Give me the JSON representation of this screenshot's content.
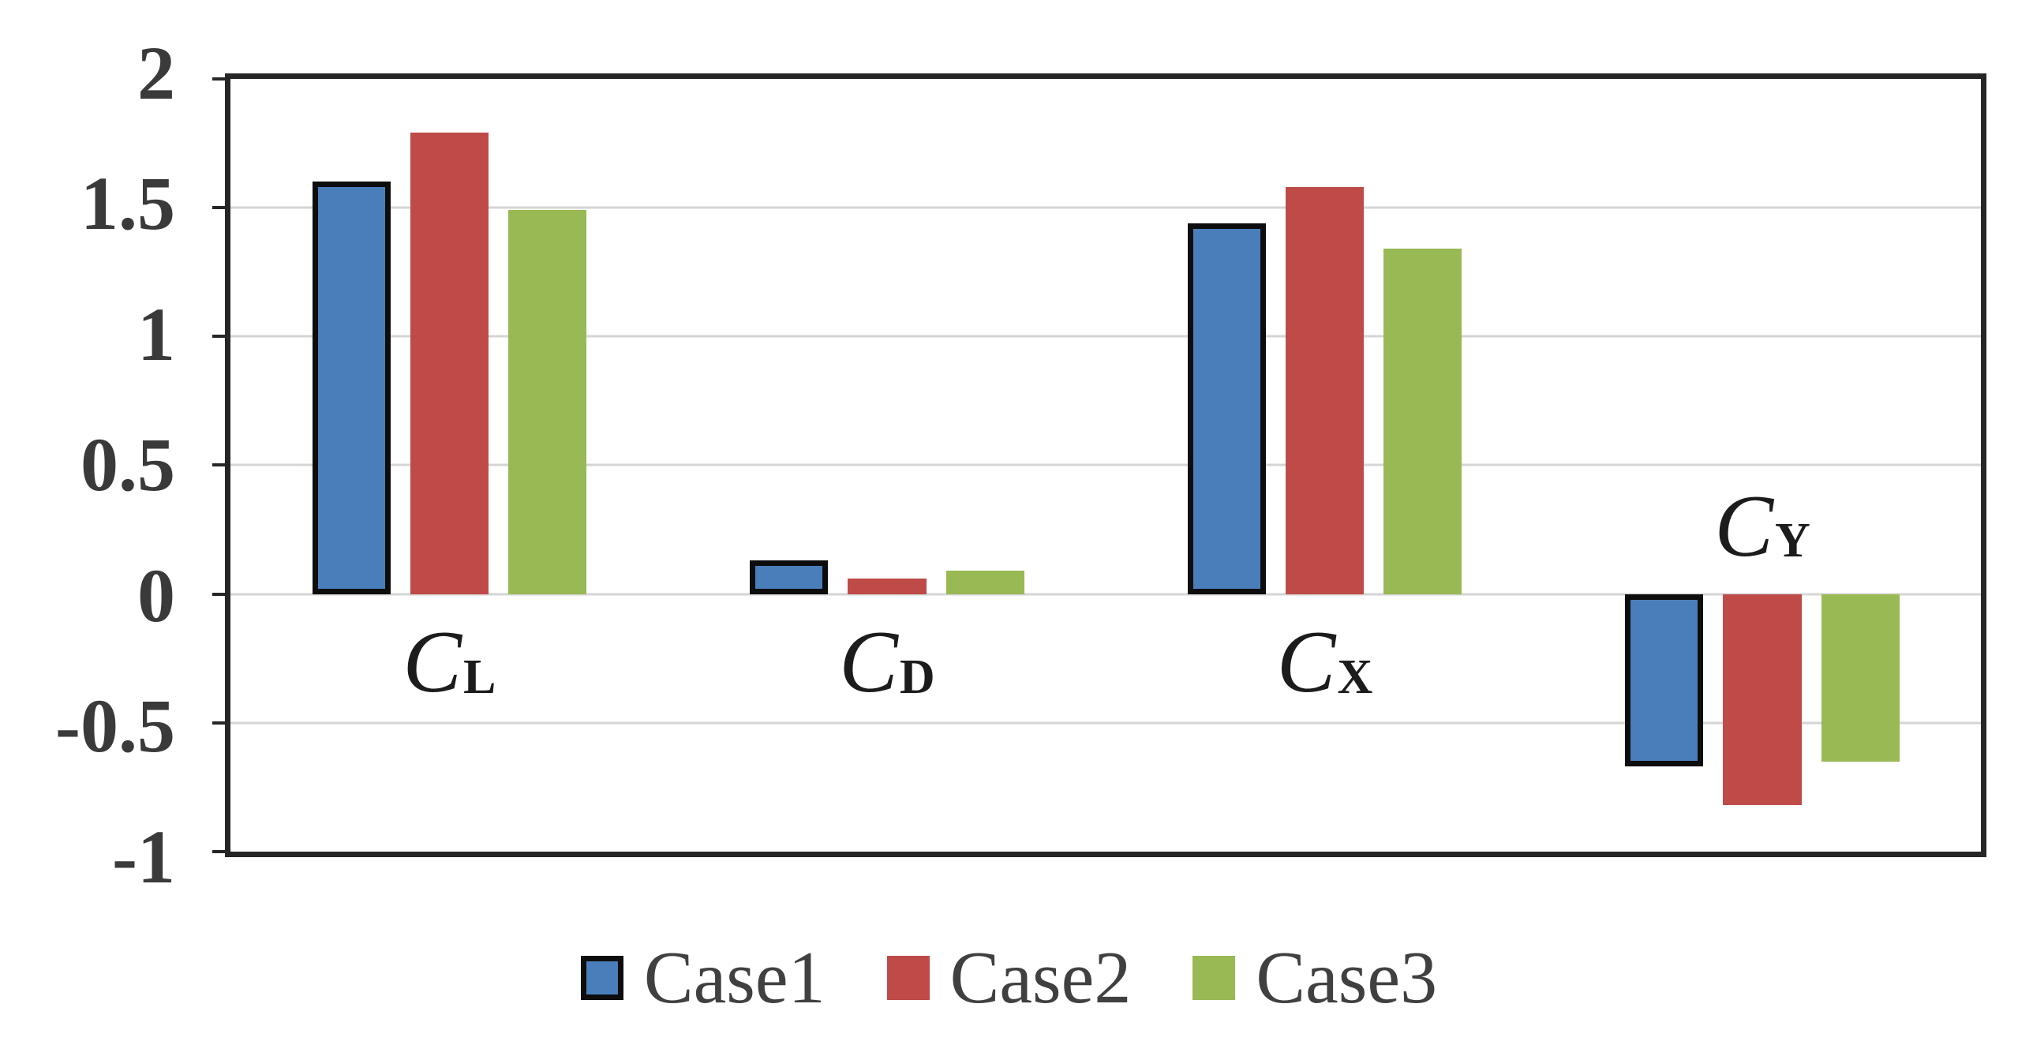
{
  "chart_data": {
    "type": "bar",
    "title": "",
    "xlabel": "",
    "ylabel": "",
    "categories": [
      {
        "text": "C",
        "sub": "L",
        "label_position": "below"
      },
      {
        "text": "C",
        "sub": "D",
        "label_position": "below"
      },
      {
        "text": "C",
        "sub": "X",
        "label_position": "below"
      },
      {
        "text": "C",
        "sub": "Y",
        "label_position": "above"
      }
    ],
    "series": [
      {
        "name": "Case1",
        "color": "#4A7EBB",
        "border_color": "#0d0d0d",
        "values": [
          1.6,
          0.13,
          1.44,
          -0.67
        ]
      },
      {
        "name": "Case2",
        "color": "#BE4B48",
        "border_color": null,
        "values": [
          1.79,
          0.06,
          1.58,
          -0.82
        ]
      },
      {
        "name": "Case3",
        "color": "#98B954",
        "border_color": null,
        "values": [
          1.49,
          0.09,
          1.34,
          -0.65
        ]
      }
    ],
    "y_axis": {
      "min": -1,
      "max": 2,
      "step": 0.5,
      "ticks": [
        2,
        1.5,
        1,
        0.5,
        0,
        -0.5,
        -1
      ],
      "tick_labels": [
        "2",
        "1.5",
        "1",
        "0.5",
        "0",
        "-0.5",
        "-1"
      ]
    },
    "grid": true,
    "gridline_values": [
      1.5,
      1,
      0.5,
      0,
      -0.5
    ],
    "legend_position": "bottom",
    "colors": {
      "plot_border": "#262626",
      "gridline": "#d5d5d5",
      "axis_text": "#3a3a3a",
      "category_text": "#1c1c1c",
      "legend_text": "#404040",
      "background": "#ffffff"
    }
  }
}
